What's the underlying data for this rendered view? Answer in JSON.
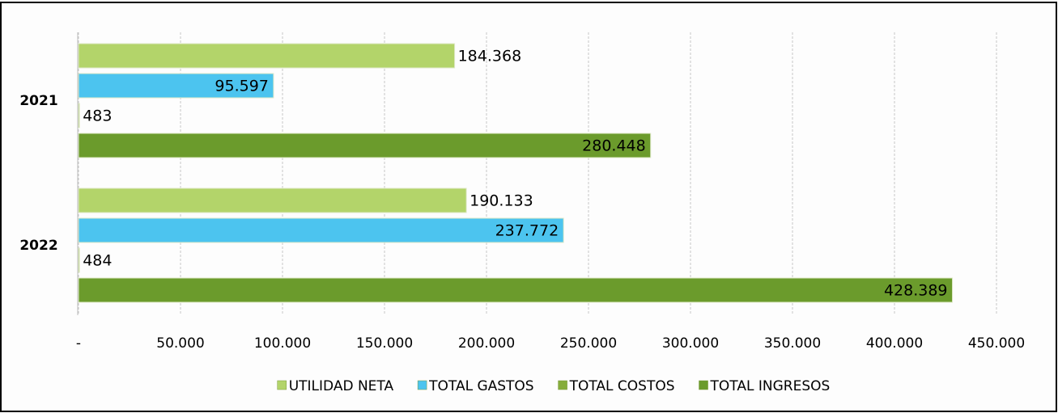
{
  "chart_data": {
    "type": "bar",
    "orientation": "horizontal",
    "categories": [
      "2021",
      "2022"
    ],
    "series": [
      {
        "name": "UTILIDAD NETA",
        "color": "#b3d46a",
        "values": [
          184368,
          190133
        ],
        "value_labels": [
          "184.368",
          "190.133"
        ]
      },
      {
        "name": "TOTAL GASTOS",
        "color": "#4cc4ef",
        "values": [
          95597,
          237772
        ],
        "value_labels": [
          "95.597",
          "237.772"
        ]
      },
      {
        "name": "TOTAL COSTOS",
        "color": "#86ad3c",
        "values": [
          483,
          484
        ]
      },
      {
        "name": "TOTAL INGRESOS",
        "color": "#6b9b2c",
        "values": [
          280448,
          428389
        ],
        "value_labels": [
          "280.448",
          "428.389"
        ]
      }
    ],
    "xlim": [
      0,
      450000
    ],
    "xticks": [
      {
        "value": 0,
        "label": "-"
      },
      {
        "value": 50000,
        "label": "50.000"
      },
      {
        "value": 100000,
        "label": "100.000"
      },
      {
        "value": 150000,
        "label": "150.000"
      },
      {
        "value": 200000,
        "label": "200.000"
      },
      {
        "value": 250000,
        "label": "250.000"
      },
      {
        "value": 300000,
        "label": "300.000"
      },
      {
        "value": 350000,
        "label": "350.000"
      },
      {
        "value": 400000,
        "label": "400.000"
      },
      {
        "value": 450000,
        "label": "450.000"
      }
    ],
    "grid": true,
    "legend": "bottom"
  }
}
